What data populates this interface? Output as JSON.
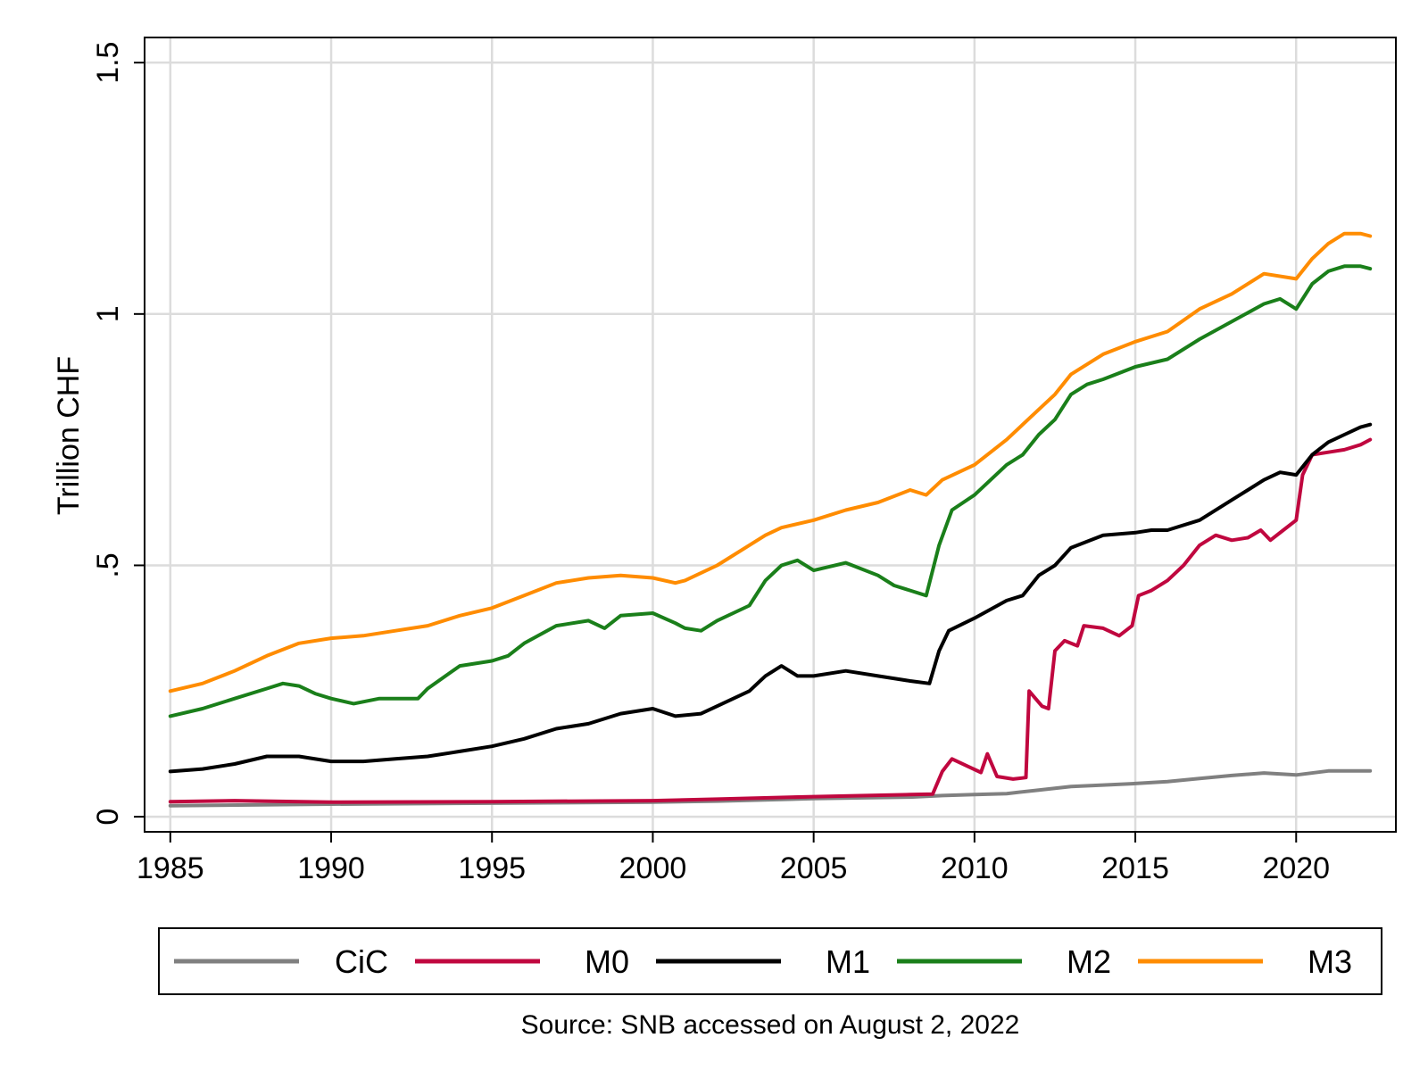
{
  "chart_data": {
    "type": "line",
    "title": "",
    "xlabel": "",
    "ylabel": "Trillion CHF",
    "xlim": [
      1985,
      2022.5
    ],
    "ylim": [
      0,
      1.5
    ],
    "x_ticks": [
      {
        "value": 1985,
        "label": "1985"
      },
      {
        "value": 1990,
        "label": "1990"
      },
      {
        "value": 1995,
        "label": "1995"
      },
      {
        "value": 2000,
        "label": "2000"
      },
      {
        "value": 2005,
        "label": "2005"
      },
      {
        "value": 2010,
        "label": "2010"
      },
      {
        "value": 2015,
        "label": "2015"
      },
      {
        "value": 2020,
        "label": "2020"
      }
    ],
    "y_ticks": [
      {
        "value": 0,
        "label": "0"
      },
      {
        "value": 0.5,
        "label": ".5"
      },
      {
        "value": 1,
        "label": "1"
      },
      {
        "value": 1.5,
        "label": "1.5"
      }
    ],
    "grid": true,
    "legend_position": "bottom",
    "note": "Source: SNB accessed on August 2, 2022",
    "series": [
      {
        "name": "CiC",
        "color": "#808080",
        "points": [
          [
            1985,
            0.022
          ],
          [
            1990,
            0.025
          ],
          [
            1995,
            0.027
          ],
          [
            2000,
            0.029
          ],
          [
            2002,
            0.031
          ],
          [
            2005,
            0.036
          ],
          [
            2008,
            0.039
          ],
          [
            2009,
            0.042
          ],
          [
            2010,
            0.044
          ],
          [
            2011,
            0.046
          ],
          [
            2012,
            0.053
          ],
          [
            2013,
            0.06
          ],
          [
            2014,
            0.063
          ],
          [
            2015,
            0.066
          ],
          [
            2016,
            0.07
          ],
          [
            2017,
            0.076
          ],
          [
            2018,
            0.082
          ],
          [
            2019,
            0.087
          ],
          [
            2020,
            0.083
          ],
          [
            2021,
            0.091
          ],
          [
            2022.3,
            0.091
          ]
        ]
      },
      {
        "name": "M0",
        "color": "#c0073f",
        "points": [
          [
            1985,
            0.03
          ],
          [
            1987,
            0.032
          ],
          [
            1990,
            0.029
          ],
          [
            1995,
            0.03
          ],
          [
            2000,
            0.032
          ],
          [
            2002,
            0.035
          ],
          [
            2005,
            0.04
          ],
          [
            2008,
            0.044
          ],
          [
            2008.7,
            0.045
          ],
          [
            2009,
            0.09
          ],
          [
            2009.3,
            0.115
          ],
          [
            2009.8,
            0.1
          ],
          [
            2010.2,
            0.088
          ],
          [
            2010.4,
            0.125
          ],
          [
            2010.7,
            0.08
          ],
          [
            2011.2,
            0.075
          ],
          [
            2011.6,
            0.078
          ],
          [
            2011.7,
            0.25
          ],
          [
            2012.1,
            0.22
          ],
          [
            2012.3,
            0.215
          ],
          [
            2012.5,
            0.33
          ],
          [
            2012.8,
            0.35
          ],
          [
            2013.2,
            0.34
          ],
          [
            2013.4,
            0.38
          ],
          [
            2014,
            0.375
          ],
          [
            2014.5,
            0.36
          ],
          [
            2014.9,
            0.38
          ],
          [
            2015.1,
            0.44
          ],
          [
            2015.5,
            0.45
          ],
          [
            2016,
            0.47
          ],
          [
            2016.5,
            0.5
          ],
          [
            2017,
            0.54
          ],
          [
            2017.5,
            0.56
          ],
          [
            2018,
            0.55
          ],
          [
            2018.5,
            0.555
          ],
          [
            2018.9,
            0.57
          ],
          [
            2019.2,
            0.55
          ],
          [
            2019.6,
            0.57
          ],
          [
            2020,
            0.59
          ],
          [
            2020.2,
            0.68
          ],
          [
            2020.5,
            0.72
          ],
          [
            2021,
            0.725
          ],
          [
            2021.5,
            0.73
          ],
          [
            2022,
            0.74
          ],
          [
            2022.3,
            0.75
          ]
        ]
      },
      {
        "name": "M1",
        "color": "#000000",
        "points": [
          [
            1985,
            0.09
          ],
          [
            1986,
            0.095
          ],
          [
            1987,
            0.105
          ],
          [
            1988,
            0.12
          ],
          [
            1989,
            0.12
          ],
          [
            1990,
            0.11
          ],
          [
            1991,
            0.11
          ],
          [
            1992,
            0.115
          ],
          [
            1993,
            0.12
          ],
          [
            1994,
            0.13
          ],
          [
            1995,
            0.14
          ],
          [
            1996,
            0.155
          ],
          [
            1997,
            0.175
          ],
          [
            1998,
            0.185
          ],
          [
            1999,
            0.205
          ],
          [
            2000,
            0.215
          ],
          [
            2000.7,
            0.2
          ],
          [
            2001.5,
            0.205
          ],
          [
            2002,
            0.22
          ],
          [
            2003,
            0.25
          ],
          [
            2003.5,
            0.28
          ],
          [
            2004,
            0.3
          ],
          [
            2004.5,
            0.28
          ],
          [
            2005,
            0.28
          ],
          [
            2006,
            0.29
          ],
          [
            2007,
            0.28
          ],
          [
            2008,
            0.27
          ],
          [
            2008.6,
            0.265
          ],
          [
            2008.9,
            0.33
          ],
          [
            2009.2,
            0.37
          ],
          [
            2010,
            0.395
          ],
          [
            2011,
            0.43
          ],
          [
            2011.5,
            0.44
          ],
          [
            2012,
            0.48
          ],
          [
            2012.5,
            0.5
          ],
          [
            2013,
            0.535
          ],
          [
            2014,
            0.56
          ],
          [
            2015,
            0.565
          ],
          [
            2015.5,
            0.57
          ],
          [
            2016,
            0.57
          ],
          [
            2017,
            0.59
          ],
          [
            2018,
            0.63
          ],
          [
            2018.5,
            0.65
          ],
          [
            2019,
            0.67
          ],
          [
            2019.5,
            0.685
          ],
          [
            2020,
            0.68
          ],
          [
            2020.5,
            0.72
          ],
          [
            2021,
            0.745
          ],
          [
            2021.5,
            0.76
          ],
          [
            2022,
            0.775
          ],
          [
            2022.3,
            0.78
          ]
        ]
      },
      {
        "name": "M2",
        "color": "#1a7f1a",
        "points": [
          [
            1985,
            0.2
          ],
          [
            1986,
            0.215
          ],
          [
            1987,
            0.235
          ],
          [
            1988,
            0.255
          ],
          [
            1988.5,
            0.265
          ],
          [
            1989,
            0.26
          ],
          [
            1989.5,
            0.245
          ],
          [
            1990,
            0.235
          ],
          [
            1990.7,
            0.225
          ],
          [
            1991.5,
            0.235
          ],
          [
            1992,
            0.235
          ],
          [
            1992.7,
            0.235
          ],
          [
            1993,
            0.255
          ],
          [
            1994,
            0.3
          ],
          [
            1995,
            0.31
          ],
          [
            1995.5,
            0.32
          ],
          [
            1996,
            0.345
          ],
          [
            1997,
            0.38
          ],
          [
            1998,
            0.39
          ],
          [
            1998.5,
            0.375
          ],
          [
            1999,
            0.4
          ],
          [
            2000,
            0.405
          ],
          [
            2000.7,
            0.385
          ],
          [
            2001,
            0.375
          ],
          [
            2001.5,
            0.37
          ],
          [
            2002,
            0.39
          ],
          [
            2003,
            0.42
          ],
          [
            2003.5,
            0.47
          ],
          [
            2004,
            0.5
          ],
          [
            2004.5,
            0.51
          ],
          [
            2005,
            0.49
          ],
          [
            2006,
            0.505
          ],
          [
            2007,
            0.48
          ],
          [
            2007.5,
            0.46
          ],
          [
            2008,
            0.45
          ],
          [
            2008.5,
            0.44
          ],
          [
            2008.9,
            0.54
          ],
          [
            2009.3,
            0.61
          ],
          [
            2010,
            0.64
          ],
          [
            2010.5,
            0.67
          ],
          [
            2011,
            0.7
          ],
          [
            2011.5,
            0.72
          ],
          [
            2012,
            0.76
          ],
          [
            2012.5,
            0.79
          ],
          [
            2013,
            0.84
          ],
          [
            2013.5,
            0.86
          ],
          [
            2014,
            0.87
          ],
          [
            2015,
            0.895
          ],
          [
            2016,
            0.91
          ],
          [
            2017,
            0.95
          ],
          [
            2018,
            0.985
          ],
          [
            2019,
            1.02
          ],
          [
            2019.5,
            1.03
          ],
          [
            2020,
            1.01
          ],
          [
            2020.5,
            1.06
          ],
          [
            2021,
            1.085
          ],
          [
            2021.5,
            1.095
          ],
          [
            2022,
            1.095
          ],
          [
            2022.3,
            1.09
          ]
        ]
      },
      {
        "name": "M3",
        "color": "#ff8c00",
        "points": [
          [
            1985,
            0.25
          ],
          [
            1986,
            0.265
          ],
          [
            1987,
            0.29
          ],
          [
            1988,
            0.32
          ],
          [
            1989,
            0.345
          ],
          [
            1990,
            0.355
          ],
          [
            1991,
            0.36
          ],
          [
            1992,
            0.37
          ],
          [
            1993,
            0.38
          ],
          [
            1994,
            0.4
          ],
          [
            1995,
            0.415
          ],
          [
            1996,
            0.44
          ],
          [
            1997,
            0.465
          ],
          [
            1998,
            0.475
          ],
          [
            1999,
            0.48
          ],
          [
            2000,
            0.475
          ],
          [
            2000.7,
            0.465
          ],
          [
            2001,
            0.47
          ],
          [
            2002,
            0.5
          ],
          [
            2003,
            0.54
          ],
          [
            2003.5,
            0.56
          ],
          [
            2004,
            0.575
          ],
          [
            2005,
            0.59
          ],
          [
            2006,
            0.61
          ],
          [
            2007,
            0.625
          ],
          [
            2008,
            0.65
          ],
          [
            2008.5,
            0.64
          ],
          [
            2009,
            0.67
          ],
          [
            2010,
            0.7
          ],
          [
            2011,
            0.75
          ],
          [
            2012,
            0.81
          ],
          [
            2012.5,
            0.84
          ],
          [
            2013,
            0.88
          ],
          [
            2014,
            0.92
          ],
          [
            2015,
            0.945
          ],
          [
            2016,
            0.965
          ],
          [
            2017,
            1.01
          ],
          [
            2018,
            1.04
          ],
          [
            2019,
            1.08
          ],
          [
            2020,
            1.07
          ],
          [
            2020.5,
            1.11
          ],
          [
            2021,
            1.14
          ],
          [
            2021.5,
            1.16
          ],
          [
            2022,
            1.16
          ],
          [
            2022.3,
            1.155
          ]
        ]
      }
    ]
  }
}
